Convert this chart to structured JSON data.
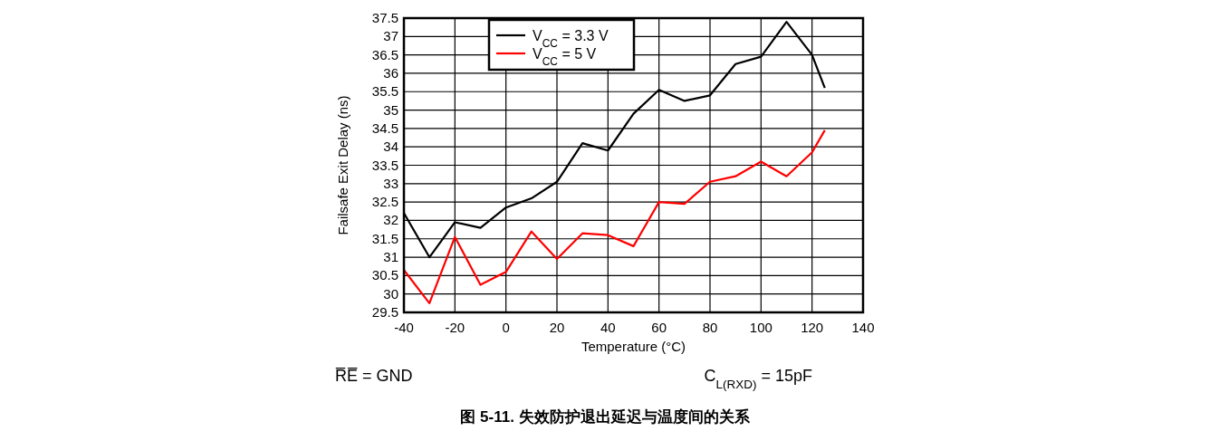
{
  "chart_data": {
    "type": "line",
    "title": "图 5-11. 失效防护退出延迟与温度间的关系",
    "xlabel": "Temperature (°C)",
    "ylabel": "Failsafe Exit Delay (ns)",
    "x": [
      -40,
      -30,
      -20,
      -10,
      0,
      10,
      20,
      30,
      40,
      50,
      60,
      70,
      80,
      90,
      100,
      110,
      120,
      125
    ],
    "series": [
      {
        "name": "V$_{CC}$ = 3.3 V",
        "color": "#000000",
        "values": [
          32.2,
          31.0,
          31.95,
          31.8,
          32.35,
          32.6,
          33.05,
          34.1,
          33.9,
          34.9,
          35.55,
          35.25,
          35.4,
          36.25,
          36.45,
          37.4,
          36.5,
          35.6
        ]
      },
      {
        "name": "V$_{CC}$ = 5 V",
        "color": "#ff0000",
        "values": [
          30.65,
          29.75,
          31.55,
          30.25,
          30.6,
          31.7,
          30.95,
          31.65,
          31.6,
          31.3,
          32.5,
          32.45,
          33.05,
          33.2,
          33.6,
          33.2,
          33.85,
          34.45
        ]
      }
    ],
    "xlim": [
      -40,
      140
    ],
    "xticks": [
      -40,
      -20,
      0,
      20,
      40,
      60,
      80,
      100,
      120,
      140
    ],
    "ylim": [
      29.5,
      37.5
    ],
    "yticks": [
      29.5,
      30,
      30.5,
      31,
      31.5,
      32,
      32.5,
      33,
      33.5,
      34,
      34.5,
      35,
      35.5,
      36,
      36.5,
      37,
      37.5
    ],
    "grid": true,
    "legend": "top left",
    "marker": "none",
    "line_style": "solid",
    "annotations": [
      "R̅E̅ = GND",
      "C$_{L(RXD)}$ = 15pF"
    ]
  }
}
